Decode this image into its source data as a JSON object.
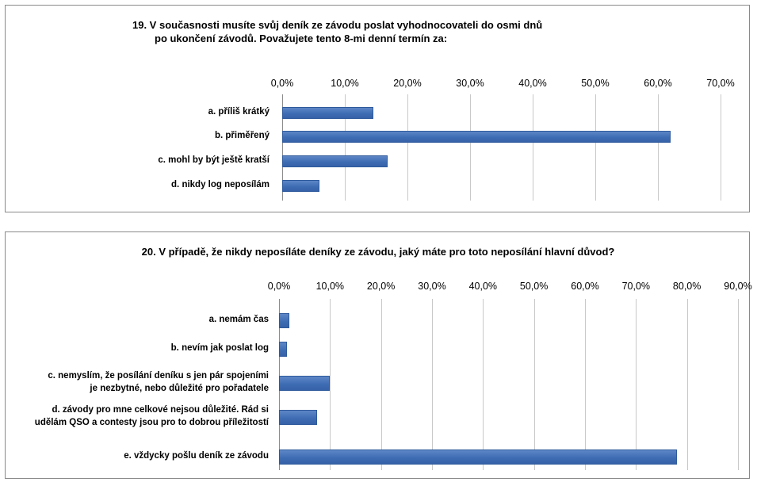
{
  "chart_data": [
    {
      "type": "bar",
      "orientation": "horizontal",
      "title_lines": [
        "19. V současnosti musíte svůj deník ze závodu poslat vyhodnocovateli do osmi dnů",
        "po ukončení závodů. Považujete tento 8-mi denní termín za:"
      ],
      "tick_labels": [
        "0,0%",
        "10,0%",
        "20,0%",
        "30,0%",
        "40,0%",
        "50,0%",
        "60,0%",
        "70,0%"
      ],
      "xlim": [
        0,
        70
      ],
      "grid": true,
      "legend": "none",
      "categories": [
        [
          "a. příliš krátký"
        ],
        [
          "b. přiměřený"
        ],
        [
          "c. mohl by být ještě kratší"
        ],
        [
          "d. nikdy log neposílám"
        ]
      ],
      "values": [
        14.5,
        62.0,
        16.8,
        6.0
      ],
      "color": "#4472c4"
    },
    {
      "type": "bar",
      "orientation": "horizontal",
      "title_lines": [
        "20. V případě, že nikdy neposíláte deníky ze závodu, jaký máte pro toto neposílání hlavní důvod?"
      ],
      "tick_labels": [
        "0,0%",
        "10,0%",
        "20,0%",
        "30,0%",
        "40,0%",
        "50,0%",
        "60,0%",
        "70,0%",
        "80,0%",
        "90,0%"
      ],
      "xlim": [
        0,
        90
      ],
      "grid": true,
      "legend": "none",
      "categories": [
        [
          "a. nemám čas"
        ],
        [
          "b. nevím jak poslat log"
        ],
        [
          "c. nemyslím, že posílání deníku s jen pár spojeními",
          "je nezbytné, nebo důležité pro pořadatele"
        ],
        [
          "d. závody pro mne celkové nejsou důležité. Rád si",
          "udělám QSO a contesty jsou pro to dobrou příležitostí"
        ],
        [
          "e. vždycky pošlu deník ze závodu"
        ]
      ],
      "values": [
        2.0,
        1.5,
        10.0,
        7.5,
        78.0
      ],
      "color": "#4472c4"
    }
  ]
}
